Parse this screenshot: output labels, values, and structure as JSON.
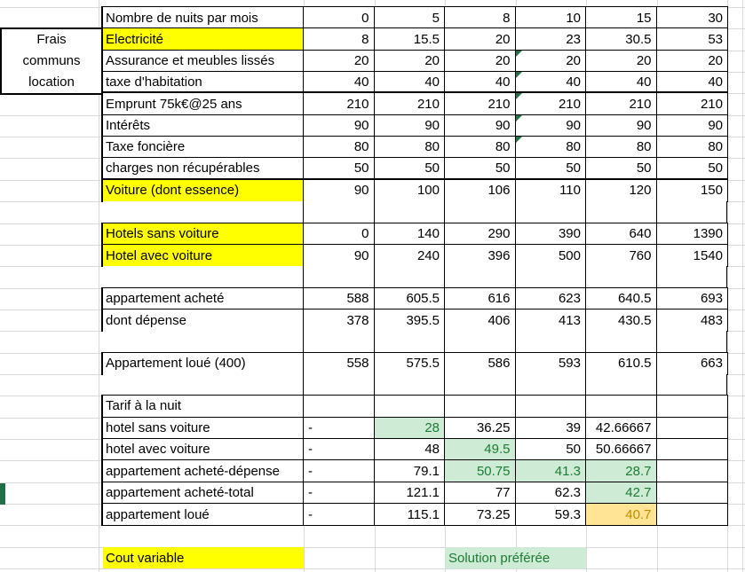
{
  "corner_box": {
    "lines": [
      "Frais",
      "communs",
      "location"
    ]
  },
  "header": {
    "label": "Nombre de nuits par mois",
    "values": [
      "0",
      "5",
      "8",
      "10",
      "15",
      "30"
    ]
  },
  "sections": [
    {
      "type": "block",
      "id": "frais-communs",
      "rows": [
        {
          "label": "Electricité",
          "label_fill": "yellow",
          "cells": [
            "8",
            "15.5",
            "20",
            "23",
            "30.5",
            "53"
          ]
        },
        {
          "label": "Assurance et meubles lissés",
          "cells": [
            "20",
            "20",
            "20",
            "20",
            "20",
            "20"
          ],
          "comment_cols": [
            3
          ]
        },
        {
          "label": "taxe d'habitation",
          "cells": [
            "40",
            "40",
            "40",
            "40",
            "40",
            "40"
          ],
          "comment_cols": [
            3
          ],
          "thick_bottom": true
        },
        {
          "label": "Emprunt 75k€@25 ans",
          "cells": [
            "210",
            "210",
            "210",
            "210",
            "210",
            "210"
          ],
          "comment_cols": [
            3
          ]
        },
        {
          "label": "Intérêts",
          "cells": [
            "90",
            "90",
            "90",
            "90",
            "90",
            "90"
          ],
          "comment_cols": [
            3
          ]
        },
        {
          "label": "Taxe foncière",
          "cells": [
            "80",
            "80",
            "80",
            "80",
            "80",
            "80"
          ],
          "comment_cols": [
            3
          ]
        },
        {
          "label": "charges non récupérables",
          "cells": [
            "50",
            "50",
            "50",
            "50",
            "50",
            "50"
          ],
          "thick_bottom": true
        },
        {
          "label": "Voiture (dont essence)",
          "label_fill": "yellow",
          "cells": [
            "90",
            "100",
            "106",
            "110",
            "120",
            "150"
          ]
        }
      ]
    },
    {
      "type": "spacer"
    },
    {
      "type": "block",
      "id": "hotels",
      "rows": [
        {
          "label": "Hotels sans voiture",
          "label_fill": "yellow",
          "cells": [
            "0",
            "140",
            "290",
            "390",
            "640",
            "1390"
          ]
        },
        {
          "label": "Hotel avec voiture",
          "label_fill": "yellow",
          "cells": [
            "90",
            "240",
            "396",
            "500",
            "760",
            "1540"
          ]
        }
      ]
    },
    {
      "type": "spacer"
    },
    {
      "type": "block",
      "id": "appartement-achete",
      "rows": [
        {
          "label": "appartement acheté",
          "cells": [
            "588",
            "605.5",
            "616",
            "623",
            "640.5",
            "693"
          ]
        },
        {
          "label": "dont dépense",
          "cells": [
            "378",
            "395.5",
            "406",
            "413",
            "430.5",
            "483"
          ]
        }
      ]
    },
    {
      "type": "spacer"
    },
    {
      "type": "block",
      "id": "appartement-loue",
      "rows": [
        {
          "label": "Appartement loué (400)",
          "cells": [
            "558",
            "575.5",
            "586",
            "593",
            "610.5",
            "663"
          ]
        }
      ]
    },
    {
      "type": "spacer"
    },
    {
      "type": "block",
      "id": "tarif-a-la-nuit",
      "rows": [
        {
          "label": "Tarif à la nuit",
          "cells": [
            "",
            "",
            "",
            "",
            "",
            ""
          ]
        },
        {
          "label": "hotel sans voiture",
          "cells": [
            {
              "v": "-",
              "align": "left"
            },
            {
              "v": "28",
              "fill": "good"
            },
            "36.25",
            "39",
            "42.66667",
            ""
          ]
        },
        {
          "label": "hotel avec voiture",
          "cells": [
            {
              "v": "-",
              "align": "left"
            },
            "48",
            {
              "v": "49.5",
              "fill": "good"
            },
            "50",
            "50.66667",
            ""
          ]
        },
        {
          "label": "appartement acheté-dépense",
          "cells": [
            {
              "v": "-",
              "align": "left"
            },
            "79.1",
            {
              "v": "50.75",
              "fill": "good"
            },
            {
              "v": "41.3",
              "fill": "good"
            },
            {
              "v": "28.7",
              "fill": "good"
            },
            ""
          ]
        },
        {
          "label": "appartement acheté-total",
          "cells": [
            {
              "v": "-",
              "align": "left"
            },
            "121.1",
            "77",
            "62.3",
            {
              "v": "42.7",
              "fill": "good"
            },
            ""
          ]
        },
        {
          "label": "appartement loué",
          "cells": [
            {
              "v": "-",
              "align": "left"
            },
            "115.1",
            "73.25",
            "59.3",
            {
              "v": "40.7",
              "fill": "neutral"
            },
            ""
          ]
        }
      ]
    }
  ],
  "legend": {
    "cout_variable": "Cout variable",
    "solution_preferee": "Solution préférée"
  },
  "colors": {
    "highlight_yellow": "#FFFF00",
    "good_fill": "#CDEBD5",
    "good_text": "#1E7B34",
    "neutral_fill": "#FFE495",
    "neutral_text": "#BF8F00",
    "comment_flag": "#217346",
    "marker_green": "#1F7145"
  }
}
